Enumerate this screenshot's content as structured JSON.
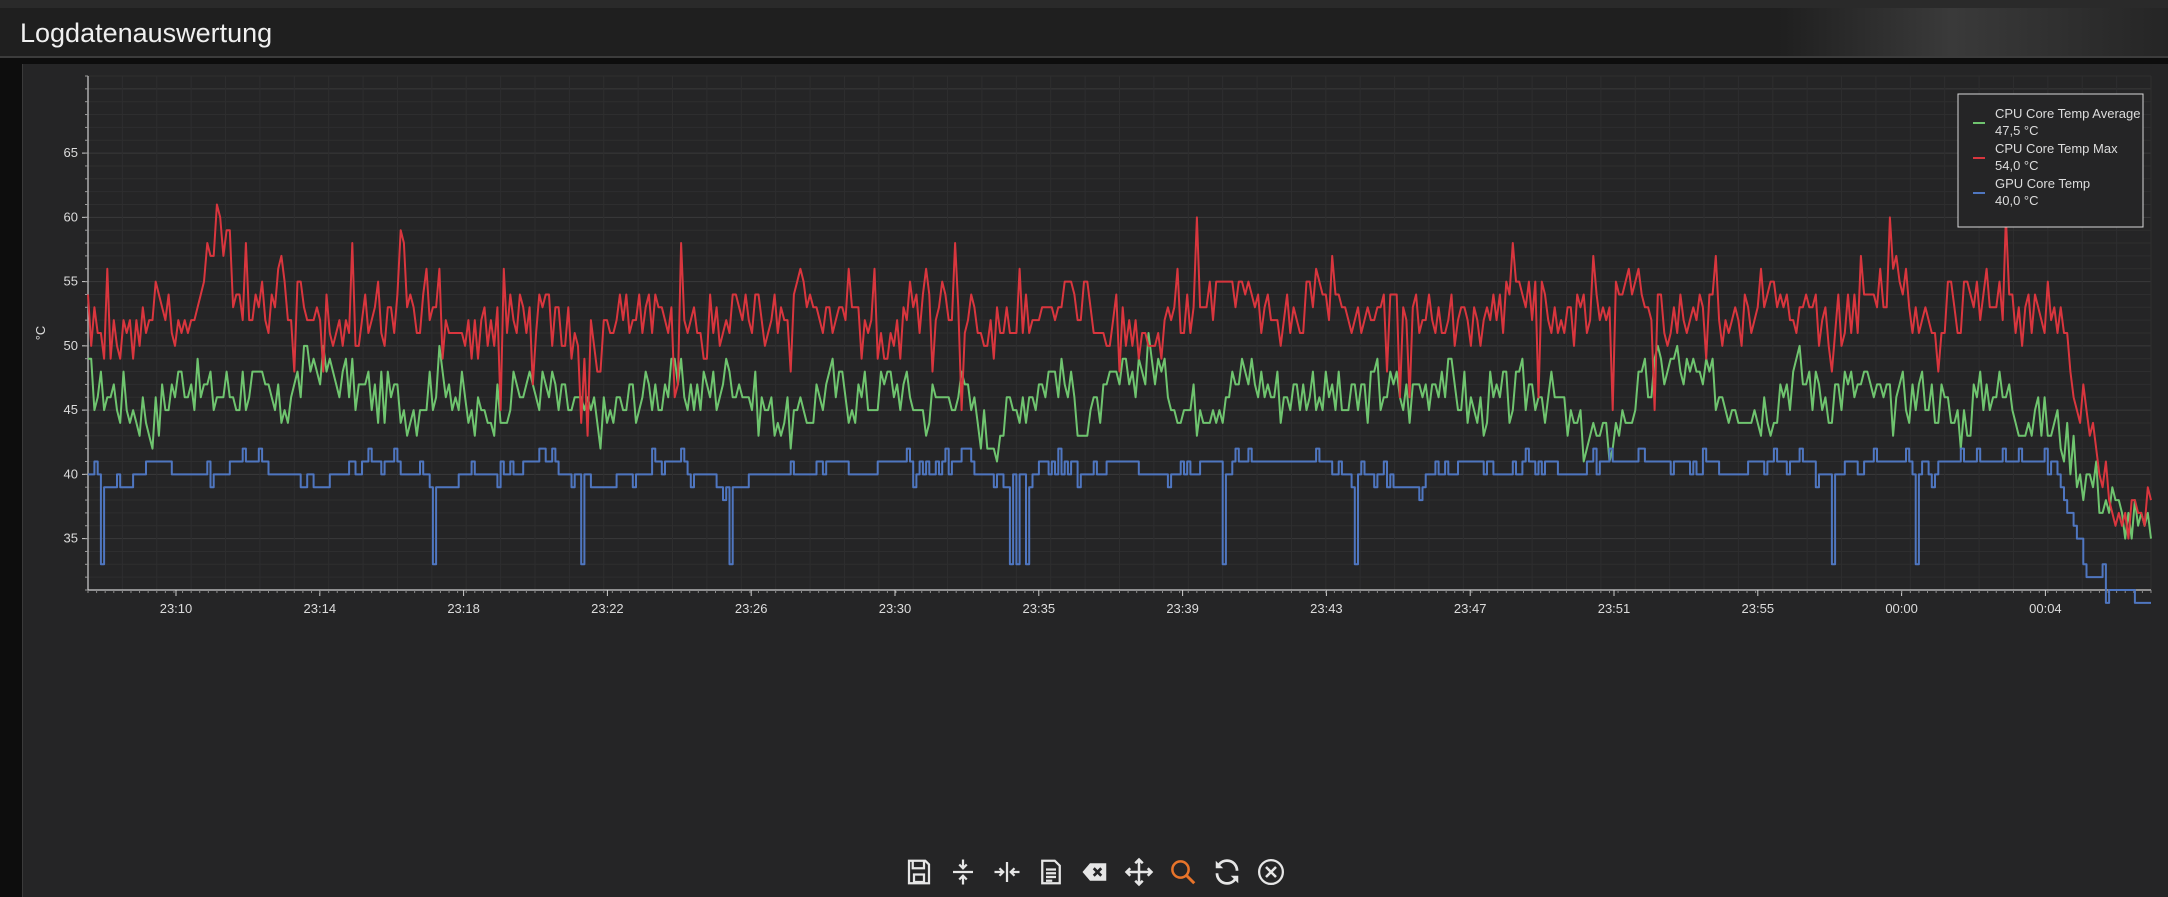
{
  "window": {
    "title": "Logdatenauswertung"
  },
  "chart_data": {
    "type": "line",
    "ylabel": "°C",
    "xlabel": "",
    "ylim": [
      31,
      71
    ],
    "yticks": [
      35,
      40,
      45,
      50,
      55,
      60,
      65
    ],
    "xticks": [
      "23:10",
      "23:14",
      "23:18",
      "23:22",
      "23:26",
      "23:30",
      "23:35",
      "23:39",
      "23:43",
      "23:47",
      "23:51",
      "23:55",
      "00:00",
      "00:04"
    ],
    "grid": true,
    "legend_position": "top-right",
    "series": [
      {
        "name": "CPU Core Temp Average",
        "current": "47,5 °C",
        "color": "#6fc46f",
        "x": [
          0,
          1,
          2,
          3,
          4,
          5,
          6,
          7,
          8,
          9,
          10,
          11,
          12,
          13,
          14,
          15,
          16,
          17,
          18,
          19,
          20,
          21,
          22,
          23,
          24,
          25,
          26,
          27,
          28,
          29,
          30,
          31,
          32,
          33,
          34,
          35,
          36,
          37,
          38,
          39,
          40,
          41,
          42,
          43,
          44,
          45,
          46,
          47,
          48,
          49,
          50,
          51,
          52,
          53,
          54,
          55,
          56,
          57,
          58,
          59,
          60,
          61,
          62,
          63,
          64
        ],
        "values": [
          47,
          46,
          44,
          48,
          46,
          47,
          45,
          49,
          47,
          46,
          45,
          48,
          44,
          46,
          47,
          45,
          44,
          46,
          47,
          46,
          48,
          45,
          44,
          47,
          46,
          47,
          45,
          47,
          43,
          46,
          48,
          44,
          47,
          49,
          45,
          46,
          48,
          46,
          47,
          45,
          47,
          46,
          48,
          45,
          46,
          47,
          44,
          42,
          46,
          49,
          47,
          46,
          45,
          48,
          46,
          47,
          45,
          47,
          44,
          47,
          45,
          44,
          40,
          37,
          35
        ]
      },
      {
        "name": "CPU Core Temp Max",
        "current": "54,0 °C",
        "color": "#d9363e",
        "x": [
          0,
          1,
          2,
          3,
          4,
          5,
          6,
          7,
          8,
          9,
          10,
          11,
          12,
          13,
          14,
          15,
          16,
          17,
          18,
          19,
          20,
          21,
          22,
          23,
          24,
          25,
          26,
          27,
          28,
          29,
          30,
          31,
          32,
          33,
          34,
          35,
          36,
          37,
          38,
          39,
          40,
          41,
          42,
          43,
          44,
          45,
          46,
          47,
          48,
          49,
          50,
          51,
          52,
          53,
          54,
          55,
          56,
          57,
          58,
          59,
          60,
          61,
          62,
          63,
          64
        ],
        "values": [
          52,
          50,
          53,
          51,
          60,
          52,
          54,
          53,
          51,
          52,
          54,
          51,
          50,
          53,
          52,
          51,
          50,
          53,
          52,
          51,
          53,
          52,
          54,
          52,
          51,
          50,
          54,
          53,
          51,
          52,
          54,
          53,
          52,
          51,
          52,
          54,
          53,
          52,
          54,
          52,
          53,
          52,
          53,
          51,
          53,
          54,
          52,
          53,
          55,
          52,
          53,
          52,
          54,
          53,
          52,
          53,
          55,
          52,
          53,
          54,
          52,
          53,
          44,
          37,
          38
        ]
      },
      {
        "name": "GPU Core Temp",
        "current": "40,0 °C",
        "color": "#4f76c0",
        "x": [
          0,
          1,
          2,
          3,
          4,
          5,
          6,
          7,
          8,
          9,
          10,
          11,
          12,
          13,
          14,
          15,
          16,
          17,
          18,
          19,
          20,
          21,
          22,
          23,
          24,
          25,
          26,
          27,
          28,
          29,
          30,
          31,
          32,
          33,
          34,
          35,
          36,
          37,
          38,
          39,
          40,
          41,
          42,
          43,
          44,
          45,
          46,
          47,
          48,
          49,
          50,
          51,
          52,
          53,
          54,
          55,
          56,
          57,
          58,
          59,
          60,
          61,
          62,
          63,
          64
        ],
        "values": [
          40,
          39,
          41,
          40,
          40,
          41,
          40,
          39,
          40,
          41,
          40,
          39,
          40,
          40,
          41,
          40,
          39,
          40,
          41,
          40,
          39,
          40,
          40,
          41,
          40,
          41,
          40,
          41,
          40,
          40,
          41,
          40,
          41,
          40,
          40,
          41,
          41,
          41,
          41,
          40,
          40,
          39,
          40,
          41,
          40,
          41,
          40,
          41,
          41,
          41,
          41,
          40,
          41,
          41,
          40,
          41,
          41,
          40,
          41,
          41,
          41,
          41,
          32,
          31,
          30
        ]
      }
    ]
  },
  "toolbar": {
    "buttons": [
      {
        "name": "save-icon"
      },
      {
        "name": "fit-vertical-icon"
      },
      {
        "name": "fit-horizontal-icon"
      },
      {
        "name": "report-icon"
      },
      {
        "name": "clear-icon"
      },
      {
        "name": "pan-icon"
      },
      {
        "name": "zoom-icon",
        "active_color": "#e8742a"
      },
      {
        "name": "refresh-icon"
      },
      {
        "name": "close-icon"
      }
    ]
  }
}
